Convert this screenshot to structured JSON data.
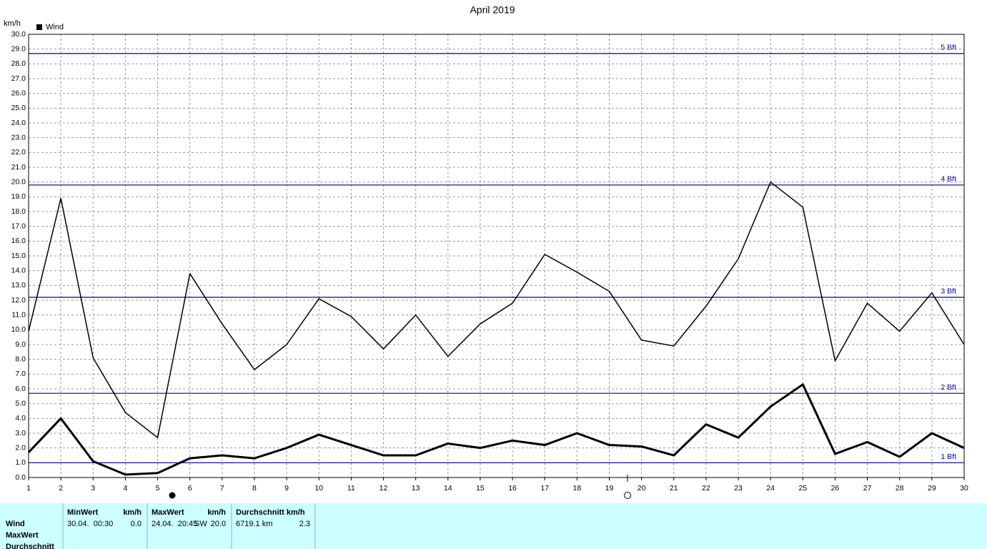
{
  "chart_data": {
    "type": "line",
    "title": "April 2019",
    "y_label": "km/h",
    "x": [
      1,
      2,
      3,
      4,
      5,
      6,
      7,
      8,
      9,
      10,
      11,
      12,
      13,
      14,
      15,
      16,
      17,
      18,
      19,
      20,
      21,
      22,
      23,
      24,
      25,
      26,
      27,
      28,
      29,
      30
    ],
    "xlim": [
      1,
      30
    ],
    "xticks": [
      1,
      2,
      3,
      4,
      5,
      6,
      7,
      8,
      9,
      10,
      11,
      12,
      13,
      14,
      15,
      16,
      17,
      18,
      19,
      20,
      21,
      22,
      23,
      24,
      25,
      26,
      27,
      28,
      29,
      30
    ],
    "ylim": [
      0,
      30
    ],
    "yticks": [
      {
        "value": 0,
        "label": "0.0"
      },
      {
        "value": 1,
        "label": "1.0"
      },
      {
        "value": 2,
        "label": "2.0"
      },
      {
        "value": 3,
        "label": "3.0"
      },
      {
        "value": 4,
        "label": "4.0"
      },
      {
        "value": 5,
        "label": "5.0"
      },
      {
        "value": 6,
        "label": "6.0"
      },
      {
        "value": 7,
        "label": "7.0"
      },
      {
        "value": 8,
        "label": "8.0"
      },
      {
        "value": 9,
        "label": "9.0"
      },
      {
        "value": 10,
        "label": "10.0"
      },
      {
        "value": 11,
        "label": "11.0"
      },
      {
        "value": 12,
        "label": "12.0"
      },
      {
        "value": 13,
        "label": "13.0"
      },
      {
        "value": 14,
        "label": "14.0"
      },
      {
        "value": 15,
        "label": "15.0"
      },
      {
        "value": 16,
        "label": "16.0"
      },
      {
        "value": 17,
        "label": "17.0"
      },
      {
        "value": 18,
        "label": "18.0"
      },
      {
        "value": 19,
        "label": "19.0"
      },
      {
        "value": 20,
        "label": "20.0"
      },
      {
        "value": 21,
        "label": "21.0"
      },
      {
        "value": 22,
        "label": "22.0"
      },
      {
        "value": 23,
        "label": "23.0"
      },
      {
        "value": 24,
        "label": "24.0"
      },
      {
        "value": 25,
        "label": "25.0"
      },
      {
        "value": 26,
        "label": "26.0"
      },
      {
        "value": 27,
        "label": "27.0"
      },
      {
        "value": 28,
        "label": "28.0"
      },
      {
        "value": 29,
        "label": "29.0"
      },
      {
        "value": 30,
        "label": "30.0"
      }
    ],
    "grid": true,
    "series": [
      {
        "color": "#000000",
        "line_width": 1.5,
        "values": [
          9.9,
          18.9,
          8.1,
          4.4,
          2.7,
          13.8,
          10.4,
          7.3,
          9.0,
          12.1,
          10.9,
          8.7,
          11.0,
          8.2,
          10.4,
          11.8,
          15.1,
          13.9,
          12.6,
          9.3,
          8.9,
          11.6,
          14.8,
          20.0,
          18.3,
          7.9,
          11.8,
          9.9,
          12.5,
          9.0
        ]
      },
      {
        "name": "Wind",
        "color": "#000000",
        "line_width": 3,
        "values": [
          1.7,
          4.0,
          1.1,
          0.2,
          0.3,
          1.3,
          1.5,
          1.3,
          2.0,
          2.9,
          2.2,
          1.5,
          1.5,
          2.3,
          2.0,
          2.5,
          2.2,
          3.0,
          2.2,
          2.1,
          1.5,
          3.6,
          2.7,
          4.8,
          6.3,
          1.6,
          2.4,
          1.4,
          3.0,
          2.0
        ]
      }
    ],
    "reference_lines": [
      {
        "value": 1.0,
        "label": "1 Bft"
      },
      {
        "value": 5.7,
        "label": "2 Bft"
      },
      {
        "value": 12.2,
        "label": "3 Bft"
      },
      {
        "value": 19.8,
        "label": "4 Bft"
      },
      {
        "value": 28.7,
        "label": "5 Bft"
      }
    ],
    "reference_color": "#0000a0"
  },
  "table": {
    "row_labels": [
      "Wind",
      "MaxWert",
      "Durchschnitt"
    ],
    "headers": [
      "MinWert",
      "km/h",
      "MaxWert",
      "km/h",
      "Durchschnitt km/h"
    ],
    "rows": [
      [
        "30.04.  00:30",
        "0.0",
        "24.04.  20:45",
        "SW",
        "20.0",
        "6719.1 km",
        "2.3"
      ]
    ]
  }
}
